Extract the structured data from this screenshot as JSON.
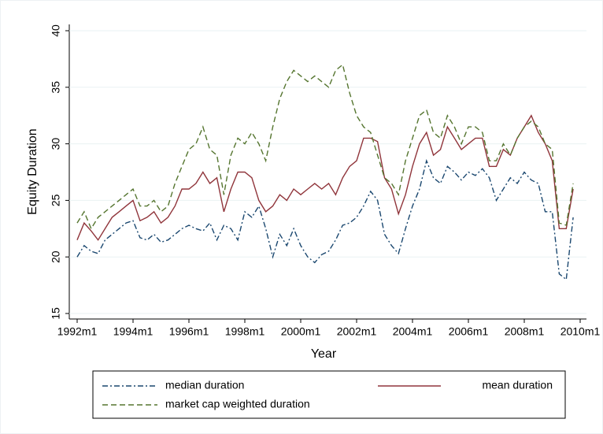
{
  "chart_data": {
    "type": "line",
    "x_label": "Year",
    "y_label": "Equity Duration",
    "x": [
      1992,
      1992.25,
      1992.5,
      1992.75,
      1993,
      1993.25,
      1993.5,
      1993.75,
      1994,
      1994.25,
      1994.5,
      1994.75,
      1995,
      1995.25,
      1995.5,
      1995.75,
      1996,
      1996.25,
      1996.5,
      1996.75,
      1997,
      1997.25,
      1997.5,
      1997.75,
      1998,
      1998.25,
      1998.5,
      1998.75,
      1999,
      1999.25,
      1999.5,
      1999.75,
      2000,
      2000.25,
      2000.5,
      2000.75,
      2001,
      2001.25,
      2001.5,
      2001.75,
      2002,
      2002.25,
      2002.5,
      2002.75,
      2003,
      2003.25,
      2003.5,
      2003.75,
      2004,
      2004.25,
      2004.5,
      2004.75,
      2005,
      2005.25,
      2005.5,
      2005.75,
      2006,
      2006.25,
      2006.5,
      2006.75,
      2007,
      2007.25,
      2007.5,
      2007.75,
      2008,
      2008.25,
      2008.5,
      2008.75,
      2009,
      2009.25,
      2009.5,
      2009.75
    ],
    "series": [
      {
        "name": "median duration",
        "color": "#1a476f",
        "dash": "7 3 2 3",
        "values": [
          20,
          21,
          20.5,
          20.3,
          21.5,
          22,
          22.5,
          23,
          23.2,
          21.7,
          21.5,
          22,
          21.3,
          21.5,
          22,
          22.5,
          22.8,
          22.5,
          22.3,
          23,
          21.5,
          22.8,
          22.5,
          21.5,
          24,
          23.5,
          24.5,
          22.5,
          20,
          22,
          21,
          22.5,
          21,
          20,
          19.5,
          20.2,
          20.5,
          21.5,
          22.8,
          23,
          23.5,
          24.5,
          25.8,
          25,
          22,
          21,
          20.3,
          22.5,
          24.5,
          26,
          28.5,
          27,
          26.5,
          28,
          27.5,
          26.8,
          27.5,
          27.2,
          27.8,
          27,
          25,
          26,
          27,
          26.5,
          27.5,
          26.8,
          26.5,
          24,
          24,
          18.5,
          18,
          23.5
        ]
      },
      {
        "name": "mean duration",
        "color": "#90353b",
        "dash": "none",
        "values": [
          21.5,
          23,
          22.3,
          21.5,
          22.5,
          23.5,
          24,
          24.5,
          25,
          23.2,
          23.5,
          24,
          23,
          23.5,
          24.5,
          26,
          26,
          26.5,
          27.5,
          26.5,
          27,
          24,
          26,
          27.5,
          27.5,
          27,
          25,
          24,
          24.5,
          25.5,
          25,
          26,
          25.5,
          26,
          26.5,
          26,
          26.5,
          25.5,
          27,
          28,
          28.5,
          30.5,
          30.5,
          30.2,
          27,
          26,
          23.8,
          25.5,
          28,
          30,
          31,
          29,
          29.5,
          31.5,
          30.5,
          29.5,
          30,
          30.5,
          30.5,
          28,
          28,
          29.5,
          29,
          30.5,
          31.5,
          32.5,
          31,
          30,
          28.5,
          22.5,
          22.5,
          26
        ]
      },
      {
        "name": "market cap weighted duration",
        "color": "#55752f",
        "dash": "7 4",
        "values": [
          23,
          24,
          22.5,
          23.5,
          24,
          24.5,
          25,
          25.5,
          26,
          24.5,
          24.5,
          25,
          24,
          24.5,
          26.5,
          28,
          29.5,
          30,
          31.5,
          29.5,
          29,
          25.5,
          29,
          30.5,
          30,
          31,
          30,
          28.5,
          31.5,
          34,
          35.5,
          36.5,
          36,
          35.5,
          36,
          35.5,
          35,
          36.5,
          37,
          34.5,
          32.5,
          31.5,
          31,
          29,
          27,
          26.5,
          25.5,
          28.5,
          30.5,
          32.5,
          33,
          31,
          30.5,
          32.5,
          31.5,
          30,
          31.5,
          31.5,
          31,
          28.5,
          28.5,
          30,
          29,
          30.5,
          31.5,
          32,
          31.5,
          30,
          29.5,
          23,
          22.8,
          26.5
        ]
      }
    ],
    "xlim": [
      1992,
      2010
    ],
    "xticks": [
      {
        "value": 1992,
        "label": "1992m1"
      },
      {
        "value": 1994,
        "label": "1994m1"
      },
      {
        "value": 1996,
        "label": "1996m1"
      },
      {
        "value": 1998,
        "label": "1998m1"
      },
      {
        "value": 2000,
        "label": "2000m1"
      },
      {
        "value": 2002,
        "label": "2002m1"
      },
      {
        "value": 2004,
        "label": "2004m1"
      },
      {
        "value": 2006,
        "label": "2006m1"
      },
      {
        "value": 2008,
        "label": "2008m1"
      },
      {
        "value": 2010,
        "label": "2010m1"
      }
    ],
    "ylim": [
      15,
      40
    ],
    "yticks": [
      15,
      20,
      25,
      30,
      35,
      40
    ],
    "grid": true,
    "legend": "bottom"
  }
}
